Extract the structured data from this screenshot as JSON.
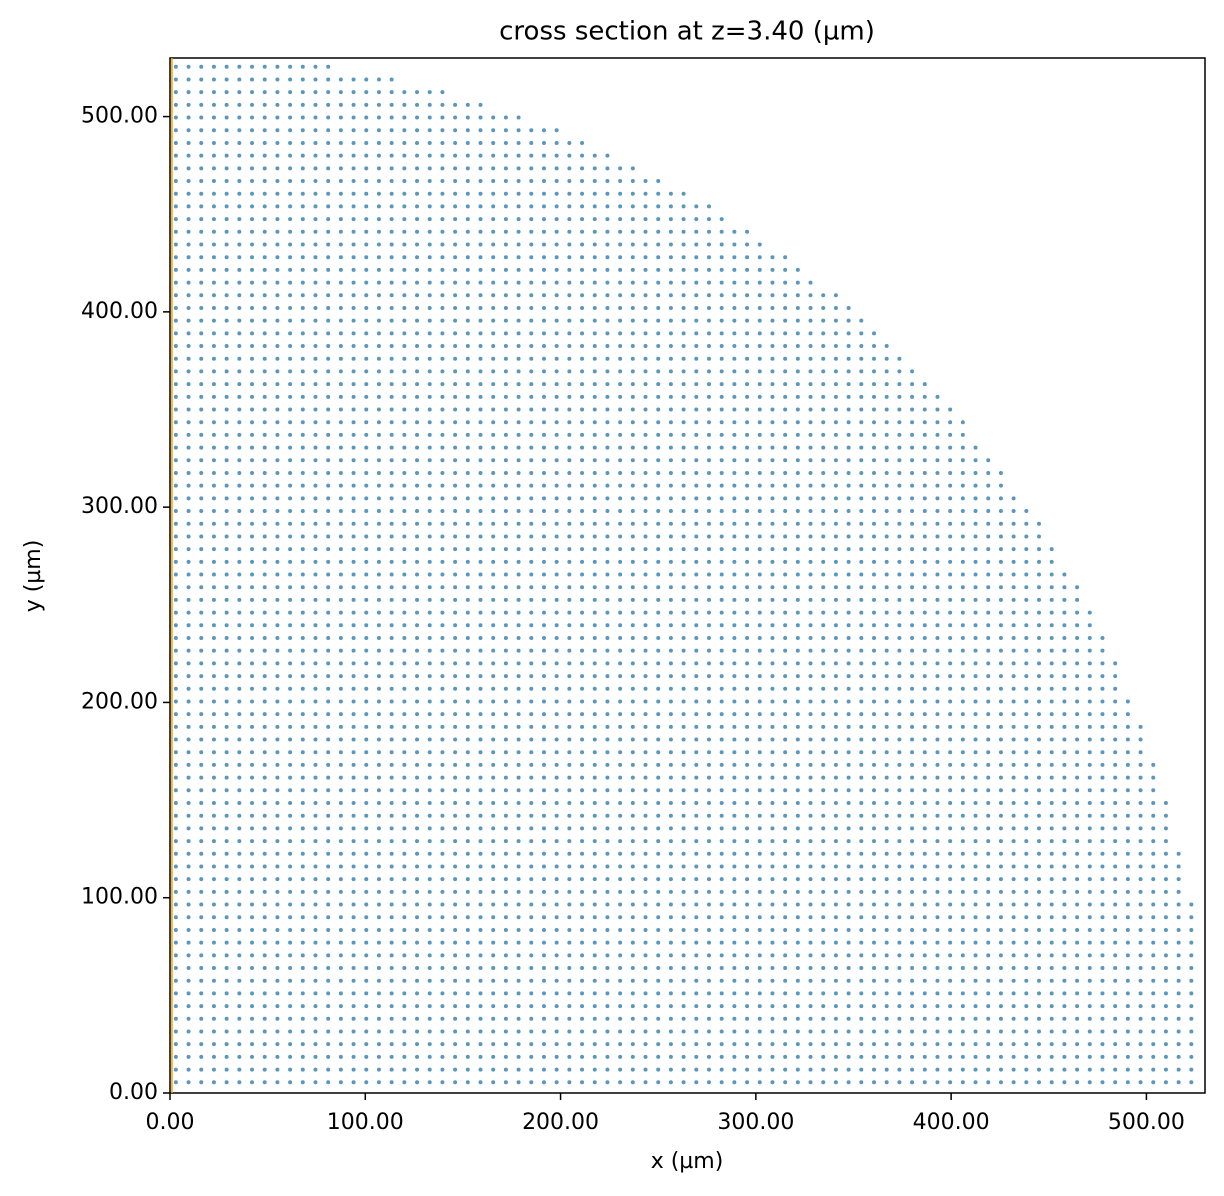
{
  "chart_data": {
    "type": "scatter",
    "title": "cross section at z=3.40 (µm)",
    "x_label": "x (µm)",
    "y_label": "y (µm)",
    "color": "#5b97bb",
    "x": [
      3,
      9.5,
      16,
      22.5,
      29,
      35.5,
      42,
      48.5,
      55,
      61.5,
      68,
      74.5,
      81,
      87.5,
      94,
      100.5,
      107,
      113.5,
      120,
      126.5,
      133,
      139.5,
      146,
      152.5,
      159,
      165.5,
      172,
      178.5,
      185,
      191.5,
      198,
      204.5,
      211,
      217.5,
      224,
      230.5,
      237,
      243.5,
      250,
      256.5,
      263,
      269.5,
      276,
      282.5,
      289,
      295.5,
      302,
      308.5,
      315,
      321.5,
      328,
      334.5,
      341,
      347.5,
      354,
      360.5,
      367,
      373.5,
      380,
      386.5,
      393,
      399.5,
      406,
      412.5,
      419,
      425.5,
      432,
      438.5,
      445,
      451.5,
      458,
      464.5,
      471,
      477.5,
      484,
      490.5,
      497,
      503.5,
      510,
      516.5,
      523
    ],
    "y": [
      5.5,
      12,
      18.5,
      25,
      31.5,
      38,
      44.5,
      51,
      57.5,
      64,
      70.5,
      77,
      83.5,
      90,
      96.5,
      103,
      109.5,
      116,
      122.5,
      129,
      135.5,
      142,
      148.5,
      155,
      161.5,
      168,
      174.5,
      181,
      187.5,
      194,
      200.5,
      207,
      213.5,
      220,
      226.5,
      233,
      239.5,
      246,
      252.5,
      259,
      265.5,
      272,
      278.5,
      285,
      291.5,
      298,
      304.5,
      311,
      317.5,
      324,
      330.5,
      337,
      343.5,
      350,
      356.5,
      363,
      369.5,
      376,
      382.5,
      389,
      395.5,
      402,
      408.5,
      415,
      421.5,
      428,
      434.5,
      441,
      447.5,
      454,
      460.5,
      467,
      473.5,
      480,
      486.5,
      493,
      499.5,
      506,
      512.5,
      519,
      525.5
    ],
    "row_counts": [
      81,
      81,
      81,
      81,
      81,
      81,
      81,
      81,
      81,
      81,
      81,
      81,
      81,
      81,
      81,
      80,
      80,
      80,
      80,
      79,
      79,
      79,
      79,
      78,
      78,
      78,
      77,
      77,
      77,
      76,
      76,
      75,
      75,
      75,
      74,
      74,
      73,
      73,
      72,
      72,
      71,
      70,
      70,
      69,
      69,
      68,
      67,
      66,
      66,
      65,
      64,
      63,
      63,
      62,
      61,
      60,
      59,
      58,
      57,
      56,
      55,
      54,
      53,
      51,
      50,
      49,
      47,
      46,
      44,
      43,
      41,
      39,
      37,
      35,
      33,
      31,
      28,
      25,
      22,
      18,
      13
    ],
    "vline": {
      "x": 1,
      "color": "#f0a30a"
    },
    "xlim": [
      0,
      530
    ],
    "ylim": [
      0,
      530
    ],
    "xticks": [
      {
        "value": 0,
        "label": "0.00"
      },
      {
        "value": 100,
        "label": "100.00"
      },
      {
        "value": 200,
        "label": "200.00"
      },
      {
        "value": 300,
        "label": "300.00"
      },
      {
        "value": 400,
        "label": "400.00"
      },
      {
        "value": 500,
        "label": "500.00"
      }
    ],
    "yticks": [
      {
        "value": 0,
        "label": "0.00"
      },
      {
        "value": 100,
        "label": "100.00"
      },
      {
        "value": 200,
        "label": "200.00"
      },
      {
        "value": 300,
        "label": "300.00"
      },
      {
        "value": 400,
        "label": "400.00"
      },
      {
        "value": 500,
        "label": "500.00"
      }
    ]
  }
}
